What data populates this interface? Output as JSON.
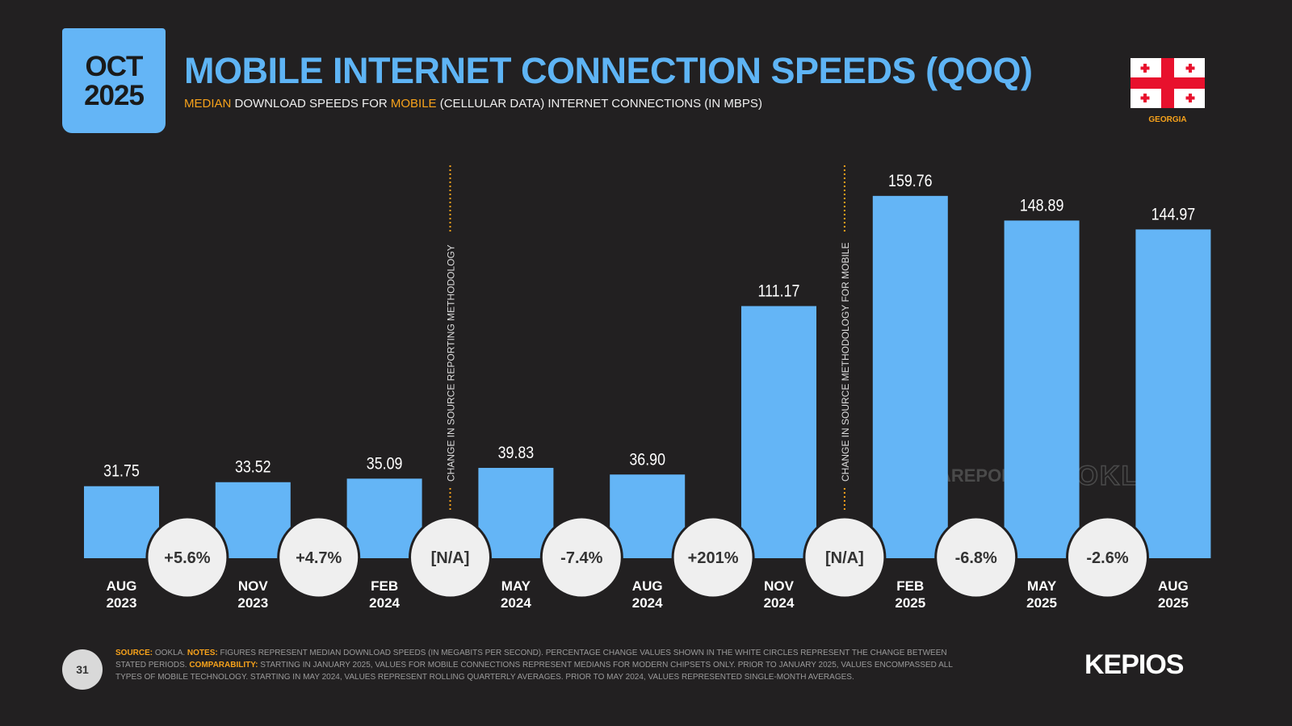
{
  "header": {
    "date_month": "OCT",
    "date_year": "2025",
    "country": "GEORGIA"
  },
  "chart_data": {
    "type": "bar",
    "title": "MOBILE INTERNET CONNECTION SPEEDS (QOQ)",
    "subtitle_parts": [
      "MEDIAN",
      " DOWNLOAD SPEEDS FOR ",
      "MOBILE",
      " (CELLULAR DATA) INTERNET CONNECTIONS (IN MBPS)"
    ],
    "categories": [
      "AUG 2023",
      "NOV 2023",
      "FEB 2024",
      "MAY 2024",
      "AUG 2024",
      "NOV 2024",
      "FEB 2025",
      "MAY 2025",
      "AUG 2025"
    ],
    "values": [
      31.75,
      33.52,
      35.09,
      39.83,
      36.9,
      111.17,
      159.76,
      148.89,
      144.97
    ],
    "value_labels": [
      "31.75",
      "33.52",
      "35.09",
      "39.83",
      "36.90",
      "111.17",
      "159.76",
      "148.89",
      "144.97"
    ],
    "color": "#64b5f6",
    "ylim": [
      0,
      175
    ],
    "changes": [
      5.6,
      4.7,
      null,
      -7.4,
      201,
      null,
      -6.8,
      -2.6
    ],
    "change_labels": [
      "+5.6%",
      "+4.7%",
      "[N/A]",
      "-7.4%",
      "+201%",
      "[N/A]",
      "-6.8%",
      "-2.6%"
    ],
    "annotations": [
      {
        "after": 2,
        "text": "CHANGE IN SOURCE REPORTING METHODOLOGY"
      },
      {
        "after": 5,
        "text": "CHANGE IN SOURCE METHODOLOGY FOR MOBILE"
      }
    ],
    "watermarks": [
      "DATAREPORTAL",
      "OOKLA"
    ]
  },
  "footer": {
    "page": "31",
    "brand": "KEPIOS",
    "notes": [
      "SOURCE:",
      " OOKLA. ",
      "NOTES:",
      " FIGURES REPRESENT MEDIAN DOWNLOAD SPEEDS (IN MEGABITS PER SECOND). PERCENTAGE CHANGE VALUES SHOWN IN THE WHITE CIRCLES REPRESENT THE CHANGE BETWEEN STATED PERIODS. ",
      "COMPARABILITY:",
      " STARTING IN JANUARY 2025, VALUES FOR MOBILE CONNECTIONS REPRESENT MEDIANS FOR MODERN CHIPSETS ONLY. PRIOR TO JANUARY 2025, VALUES ENCOMPASSED ALL TYPES OF MOBILE TECHNOLOGY. STARTING IN MAY 2024, VALUES REPRESENT ROLLING QUARTERLY AVERAGES. PRIOR TO MAY 2024, VALUES REPRESENTED SINGLE-MONTH AVERAGES."
    ]
  }
}
